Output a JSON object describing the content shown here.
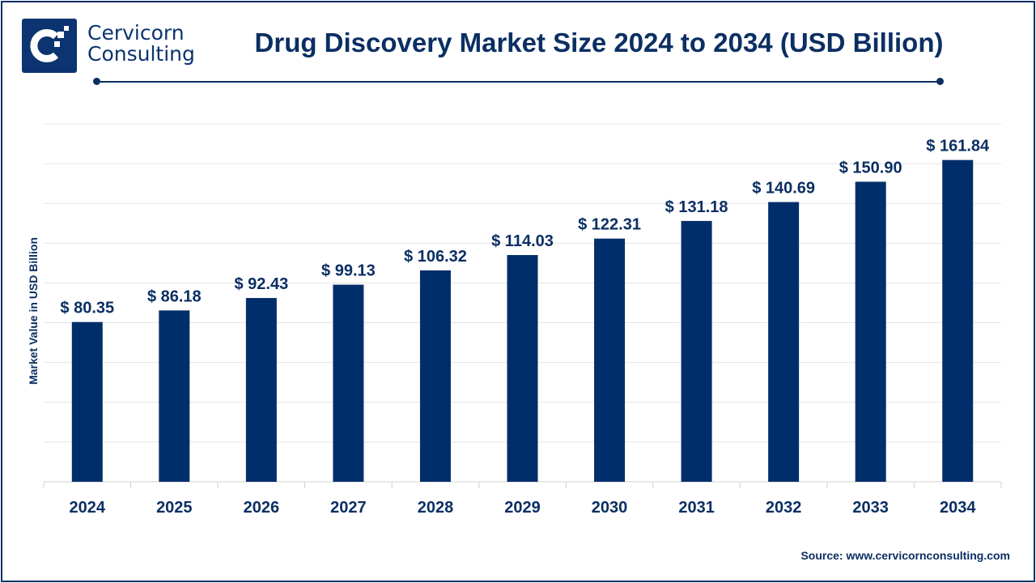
{
  "brand": {
    "line1": "Cervicorn",
    "line2": "Consulting",
    "color": "#0b3470"
  },
  "source": "Source: www.cervicornconsulting.com",
  "chart_data": {
    "type": "bar",
    "title": "Drug Discovery Market Size 2024 to 2034 (USD Billion)",
    "xlabel": "",
    "ylabel": "Market Value in USD Billion",
    "categories": [
      "2024",
      "2025",
      "2026",
      "2027",
      "2028",
      "2029",
      "2030",
      "2031",
      "2032",
      "2033",
      "2034"
    ],
    "values": [
      80.35,
      86.18,
      92.43,
      99.13,
      106.32,
      114.03,
      122.31,
      131.18,
      140.69,
      150.9,
      161.84
    ],
    "data_labels": [
      "$ 80.35",
      "$ 86.18",
      "$ 92.43",
      "$ 99.13",
      "$ 106.32",
      "$ 114.03",
      "$ 122.31",
      "$ 131.18",
      "$ 140.69",
      "$ 150.90",
      "$ 161.84"
    ],
    "ylim": [
      0,
      180
    ],
    "y_tick_step": 20,
    "y_tick_labels_shown": false,
    "grid": true,
    "legend": "none",
    "bar_color": "#002e6a"
  }
}
